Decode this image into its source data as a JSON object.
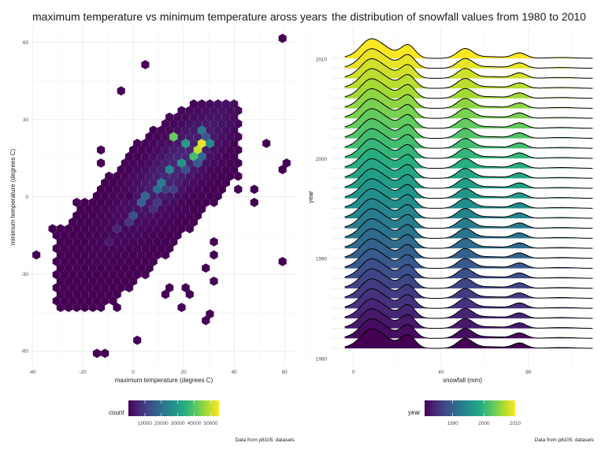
{
  "chart_data": [
    {
      "type": "hexbin",
      "title": "maximum temperature vs minimum temperature aross years",
      "xlabel": "maximum temperature (degrees C)",
      "ylabel": "minimum temperature (degrees C)",
      "xlim": [
        -40,
        64
      ],
      "ylim": [
        -66,
        66
      ],
      "x_ticks": [
        -40,
        -20,
        0,
        20,
        40,
        60
      ],
      "x_tick_labels": [
        "-40",
        "-20",
        "0",
        "20",
        "40",
        "60"
      ],
      "y_ticks": [
        -60,
        -30,
        0,
        30,
        60
      ],
      "y_tick_labels": [
        "-60",
        "-30",
        "0",
        "30",
        "60"
      ],
      "grid": true,
      "fill_scale": "viridis",
      "legend": {
        "title": "count",
        "position": "bottom",
        "range": [
          0,
          55000
        ],
        "ticks": [
          10000,
          20000,
          30000,
          40000,
          50000
        ],
        "tick_labels": [
          "10000",
          "20000",
          "30000",
          "40000",
          "50000"
        ]
      },
      "caption": "Data from p8105. datasets",
      "cells": [
        {
          "x": 59.7,
          "y": 61.4,
          "count": 1
        },
        {
          "x": 3.5,
          "y": 50.3,
          "count": 1
        },
        {
          "x": -5.2,
          "y": 40.1,
          "count": 1
        },
        {
          "x": -14.1,
          "y": 18.4,
          "count": 1
        },
        {
          "x": -12.3,
          "y": 12.9,
          "count": 1
        },
        {
          "x": -38.5,
          "y": -21.8,
          "count": 1
        },
        {
          "x": -30.5,
          "y": -11.2,
          "count": 1
        },
        {
          "x": -24.3,
          "y": -13.8,
          "count": 1
        },
        {
          "x": -23.3,
          "y": -1.2,
          "count": 1
        },
        {
          "x": -0.8,
          "y": 0.2,
          "count": 1
        },
        {
          "x": 60.8,
          "y": 13.1,
          "count": 1
        },
        {
          "x": 59.6,
          "y": 9.5,
          "count": 1
        },
        {
          "x": 53.8,
          "y": 20.2,
          "count": 1
        },
        {
          "x": 49.3,
          "y": 3.4,
          "count": 1
        },
        {
          "x": 40.7,
          "y": 2.7,
          "count": 1
        },
        {
          "x": 42.9,
          "y": 6.8,
          "count": 1
        },
        {
          "x": 47.3,
          "y": -1.2,
          "count": 1
        },
        {
          "x": 59.5,
          "y": -25.5,
          "count": 1
        },
        {
          "x": 30.4,
          "y": -18.7,
          "count": 1
        },
        {
          "x": 32.8,
          "y": -23.9,
          "count": 1
        },
        {
          "x": 29.6,
          "y": -27.6,
          "count": 1
        },
        {
          "x": 32.4,
          "y": -31.6,
          "count": 1
        },
        {
          "x": 20.7,
          "y": -34.8,
          "count": 1
        },
        {
          "x": 21.1,
          "y": -39.1,
          "count": 1
        },
        {
          "x": 12.6,
          "y": -39.1,
          "count": 1
        },
        {
          "x": 14.1,
          "y": -35.0,
          "count": 1
        },
        {
          "x": -5.2,
          "y": -38.6,
          "count": 1
        },
        {
          "x": 19.3,
          "y": -43.0,
          "count": 1
        },
        {
          "x": -7.7,
          "y": -42.9,
          "count": 1
        },
        {
          "x": 29.9,
          "y": -46.2,
          "count": 1
        },
        {
          "x": 28.7,
          "y": -49.0,
          "count": 1
        },
        {
          "x": 1.7,
          "y": -56.4,
          "count": 1
        },
        {
          "x": -13.1,
          "y": -59.9,
          "count": 1
        },
        {
          "x": -9.8,
          "y": -59.9,
          "count": 1
        },
        {
          "x": 17.5,
          "y": 23.0,
          "count": 42000
        },
        {
          "x": 20.5,
          "y": 20.4,
          "count": 30000
        },
        {
          "x": 24.3,
          "y": 17.5,
          "count": 50000
        },
        {
          "x": 26.5,
          "y": 20.2,
          "count": 53000
        },
        {
          "x": 22.5,
          "y": 14.6,
          "count": 38000
        },
        {
          "x": 19.3,
          "y": 12.3,
          "count": 28000
        },
        {
          "x": 15.8,
          "y": 9.9,
          "count": 25000
        },
        {
          "x": 12.5,
          "y": 6.6,
          "count": 23000
        },
        {
          "x": 9.3,
          "y": 3.8,
          "count": 20000
        },
        {
          "x": 6.0,
          "y": 0.5,
          "count": 18000
        },
        {
          "x": 3.0,
          "y": -2.7,
          "count": 17000
        },
        {
          "x": 0.3,
          "y": -6.6,
          "count": 14000
        },
        {
          "x": -2.5,
          "y": -11.0,
          "count": 9000
        },
        {
          "x": -6.0,
          "y": -13.7,
          "count": 6000
        },
        {
          "x": -9.5,
          "y": -16.5,
          "count": 4000
        },
        {
          "x": 30.0,
          "y": 20.0,
          "count": 26000
        },
        {
          "x": 26.0,
          "y": 24.7,
          "count": 22000
        },
        {
          "x": 29.5,
          "y": 23.1,
          "count": 15000
        },
        {
          "x": 28.2,
          "y": 15.0,
          "count": 18000
        },
        {
          "x": 25.9,
          "y": 12.3,
          "count": 15000
        },
        {
          "x": 21.5,
          "y": 9.5,
          "count": 13000
        },
        {
          "x": 16.0,
          "y": 4.0,
          "count": 11000
        },
        {
          "x": 10.0,
          "y": -2.0,
          "count": 9000
        },
        {
          "x": 13.0,
          "y": 2.5,
          "count": 10000
        },
        {
          "x": 8.5,
          "y": -4.5,
          "count": 7000
        }
      ]
    },
    {
      "type": "ridgeline",
      "title": "the distribution of snowfall values from 1980 to 2010",
      "xlabel": "snowfall (mm)",
      "ylabel": "year",
      "xlim": [
        -10,
        110
      ],
      "x_ticks": [
        0,
        40,
        80
      ],
      "x_tick_labels": [
        "0",
        "40",
        "80"
      ],
      "y_ticks": [
        1980,
        1990,
        2000,
        2010
      ],
      "y_tick_labels": [
        "1980",
        "1990",
        "2000",
        "2010"
      ],
      "years": [
        1981,
        1982,
        1983,
        1984,
        1985,
        1986,
        1987,
        1988,
        1989,
        1990,
        1991,
        1992,
        1993,
        1994,
        1995,
        1996,
        1997,
        1998,
        1999,
        2000,
        2001,
        2002,
        2003,
        2004,
        2005,
        2006,
        2007,
        2008,
        2009,
        2010
      ],
      "density_peaks_mm": [
        10,
        25,
        51,
        76
      ],
      "grid": true,
      "fill_scale": "viridis",
      "legend": {
        "title": "year",
        "position": "bottom",
        "range": [
          1981,
          2010
        ],
        "ticks": [
          1990,
          2000,
          2010
        ],
        "tick_labels": [
          "1990",
          "2000",
          "2010"
        ]
      },
      "caption": "Data from p8105. datasets"
    }
  ]
}
